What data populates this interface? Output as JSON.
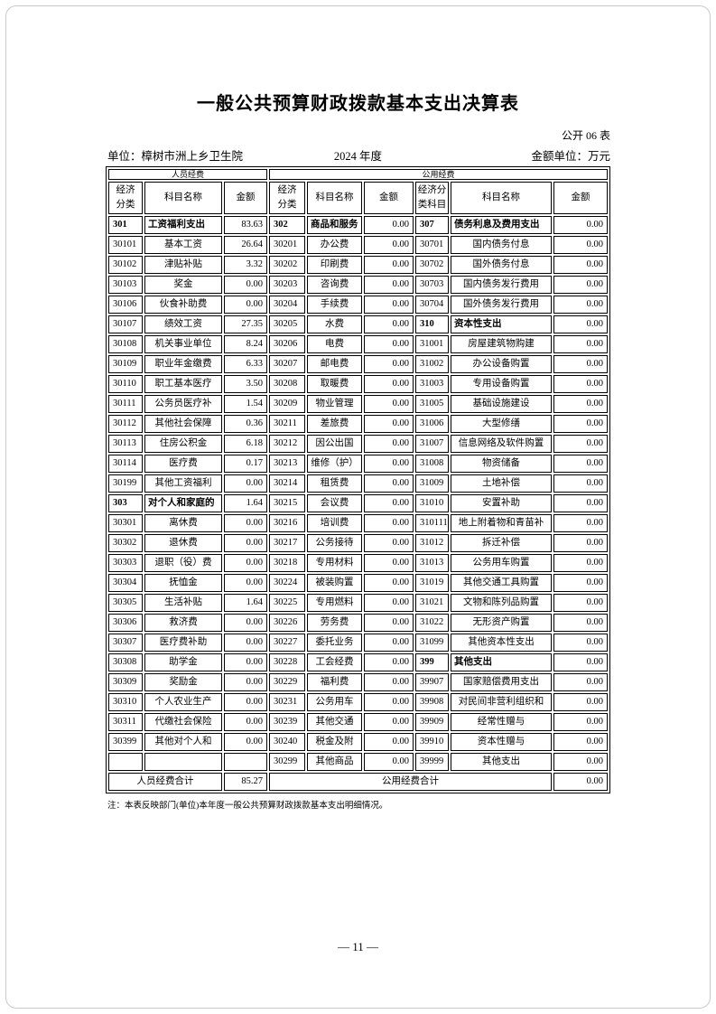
{
  "page": {
    "title": "一般公共预算财政拨款基本支出决算表",
    "table_code": "公开 06 表",
    "unit_label": "单位：樟树市洲上乡卫生院",
    "year_label": "2024 年度",
    "amount_unit_label": "金额单位：万元",
    "note": "注：本表反映部门(单位)本年度一般公共预算财政拨款基本支出明细情况。",
    "page_number": "— 11 —"
  },
  "table": {
    "group_headers": [
      "人员经费",
      "公用经费"
    ],
    "column_headers": [
      "经济\n分类",
      "科目名称",
      "金额",
      "经济\n分类",
      "科目名称",
      "金额",
      "经济分\n类科目",
      "科目名称",
      "金额"
    ],
    "rows": [
      [
        [
          "301",
          "工资福利支出",
          "83.63",
          true
        ],
        [
          "302",
          "商品和服务",
          "0.00",
          true
        ],
        [
          "307",
          "债务利息及费用支出",
          "0.00",
          true
        ]
      ],
      [
        [
          "30101",
          "基本工资",
          "26.64",
          false
        ],
        [
          "30201",
          "办公费",
          "0.00",
          false
        ],
        [
          "30701",
          "国内债务付息",
          "0.00",
          false
        ]
      ],
      [
        [
          "30102",
          "津贴补贴",
          "3.32",
          false
        ],
        [
          "30202",
          "印刷费",
          "0.00",
          false
        ],
        [
          "30702",
          "国外债务付息",
          "0.00",
          false
        ]
      ],
      [
        [
          "30103",
          "奖金",
          "0.00",
          false
        ],
        [
          "30203",
          "咨询费",
          "0.00",
          false
        ],
        [
          "30703",
          "国内债务发行费用",
          "0.00",
          false
        ]
      ],
      [
        [
          "30106",
          "伙食补助费",
          "0.00",
          false
        ],
        [
          "30204",
          "手续费",
          "0.00",
          false
        ],
        [
          "30704",
          "国外债务发行费用",
          "0.00",
          false
        ]
      ],
      [
        [
          "30107",
          "绩效工资",
          "27.35",
          false
        ],
        [
          "30205",
          "水费",
          "0.00",
          false
        ],
        [
          "310",
          "资本性支出",
          "0.00",
          true
        ]
      ],
      [
        [
          "30108",
          "机关事业单位",
          "8.24",
          false
        ],
        [
          "30206",
          "电费",
          "0.00",
          false
        ],
        [
          "31001",
          "房屋建筑物购建",
          "0.00",
          false
        ]
      ],
      [
        [
          "30109",
          "职业年金缴费",
          "6.33",
          false
        ],
        [
          "30207",
          "邮电费",
          "0.00",
          false
        ],
        [
          "31002",
          "办公设备购置",
          "0.00",
          false
        ]
      ],
      [
        [
          "30110",
          "职工基本医疗",
          "3.50",
          false
        ],
        [
          "30208",
          "取暖费",
          "0.00",
          false
        ],
        [
          "31003",
          "专用设备购置",
          "0.00",
          false
        ]
      ],
      [
        [
          "30111",
          "公务员医疗补",
          "1.54",
          false
        ],
        [
          "30209",
          "物业管理",
          "0.00",
          false
        ],
        [
          "31005",
          "基础设施建设",
          "0.00",
          false
        ]
      ],
      [
        [
          "30112",
          "其他社会保障",
          "0.36",
          false
        ],
        [
          "30211",
          "差旅费",
          "0.00",
          false
        ],
        [
          "31006",
          "大型修缮",
          "0.00",
          false
        ]
      ],
      [
        [
          "30113",
          "住房公积金",
          "6.18",
          false
        ],
        [
          "30212",
          "因公出国",
          "0.00",
          false
        ],
        [
          "31007",
          "信息网络及软件购置",
          "0.00",
          false
        ]
      ],
      [
        [
          "30114",
          "医疗费",
          "0.17",
          false
        ],
        [
          "30213",
          "维修（护）",
          "0.00",
          false
        ],
        [
          "31008",
          "物资储备",
          "0.00",
          false
        ]
      ],
      [
        [
          "30199",
          "其他工资福利",
          "0.00",
          false
        ],
        [
          "30214",
          "租赁费",
          "0.00",
          false
        ],
        [
          "31009",
          "土地补偿",
          "0.00",
          false
        ]
      ],
      [
        [
          "303",
          "对个人和家庭的",
          "1.64",
          true
        ],
        [
          "30215",
          "会议费",
          "0.00",
          false
        ],
        [
          "31010",
          "安置补助",
          "0.00",
          false
        ]
      ],
      [
        [
          "30301",
          "离休费",
          "0.00",
          false
        ],
        [
          "30216",
          "培训费",
          "0.00",
          false
        ],
        [
          "310111",
          "地上附着物和青苗补",
          "0.00",
          false
        ]
      ],
      [
        [
          "30302",
          "退休费",
          "0.00",
          false
        ],
        [
          "30217",
          "公务接待",
          "0.00",
          false
        ],
        [
          "31012",
          "拆迁补偿",
          "0.00",
          false
        ]
      ],
      [
        [
          "30303",
          "退职（役）费",
          "0.00",
          false
        ],
        [
          "30218",
          "专用材料",
          "0.00",
          false
        ],
        [
          "31013",
          "公务用车购置",
          "0.00",
          false
        ]
      ],
      [
        [
          "30304",
          "抚恤金",
          "0.00",
          false
        ],
        [
          "30224",
          "被装购置",
          "0.00",
          false
        ],
        [
          "31019",
          "其他交通工具购置",
          "0.00",
          false
        ]
      ],
      [
        [
          "30305",
          "生活补贴",
          "1.64",
          false
        ],
        [
          "30225",
          "专用燃料",
          "0.00",
          false
        ],
        [
          "31021",
          "文物和陈列品购置",
          "0.00",
          false
        ]
      ],
      [
        [
          "30306",
          "救济费",
          "0.00",
          false
        ],
        [
          "30226",
          "劳务费",
          "0.00",
          false
        ],
        [
          "31022",
          "无形资产购置",
          "0.00",
          false
        ]
      ],
      [
        [
          "30307",
          "医疗费补助",
          "0.00",
          false
        ],
        [
          "30227",
          "委托业务",
          "0.00",
          false
        ],
        [
          "31099",
          "其他资本性支出",
          "0.00",
          false
        ]
      ],
      [
        [
          "30308",
          "助学金",
          "0.00",
          false
        ],
        [
          "30228",
          "工会经费",
          "0.00",
          false
        ],
        [
          "399",
          "其他支出",
          "0.00",
          true
        ]
      ],
      [
        [
          "30309",
          "奖励金",
          "0.00",
          false
        ],
        [
          "30229",
          "福利费",
          "0.00",
          false
        ],
        [
          "39907",
          "国家赔偿费用支出",
          "0.00",
          false
        ]
      ],
      [
        [
          "30310",
          "个人农业生产",
          "0.00",
          false
        ],
        [
          "30231",
          "公务用车",
          "0.00",
          false
        ],
        [
          "39908",
          "对民间非营利组织和",
          "0.00",
          false
        ]
      ],
      [
        [
          "30311",
          "代缴社会保险",
          "0.00",
          false
        ],
        [
          "30239",
          "其他交通",
          "0.00",
          false
        ],
        [
          "39909",
          "经常性赠与",
          "0.00",
          false
        ]
      ],
      [
        [
          "30399",
          "其他对个人和",
          "0.00",
          false
        ],
        [
          "30240",
          "税金及附",
          "0.00",
          false
        ],
        [
          "39910",
          "资本性赠与",
          "0.00",
          false
        ]
      ],
      [
        [
          "",
          "",
          "",
          false
        ],
        [
          "30299",
          "其他商品",
          "0.00",
          false
        ],
        [
          "39999",
          "其他支出",
          "0.00",
          false
        ]
      ]
    ],
    "totals": {
      "personnel_label": "人员经费合计",
      "personnel_amount": "85.27",
      "public_label": "公用经费合计",
      "public_amount": "0.00"
    }
  }
}
